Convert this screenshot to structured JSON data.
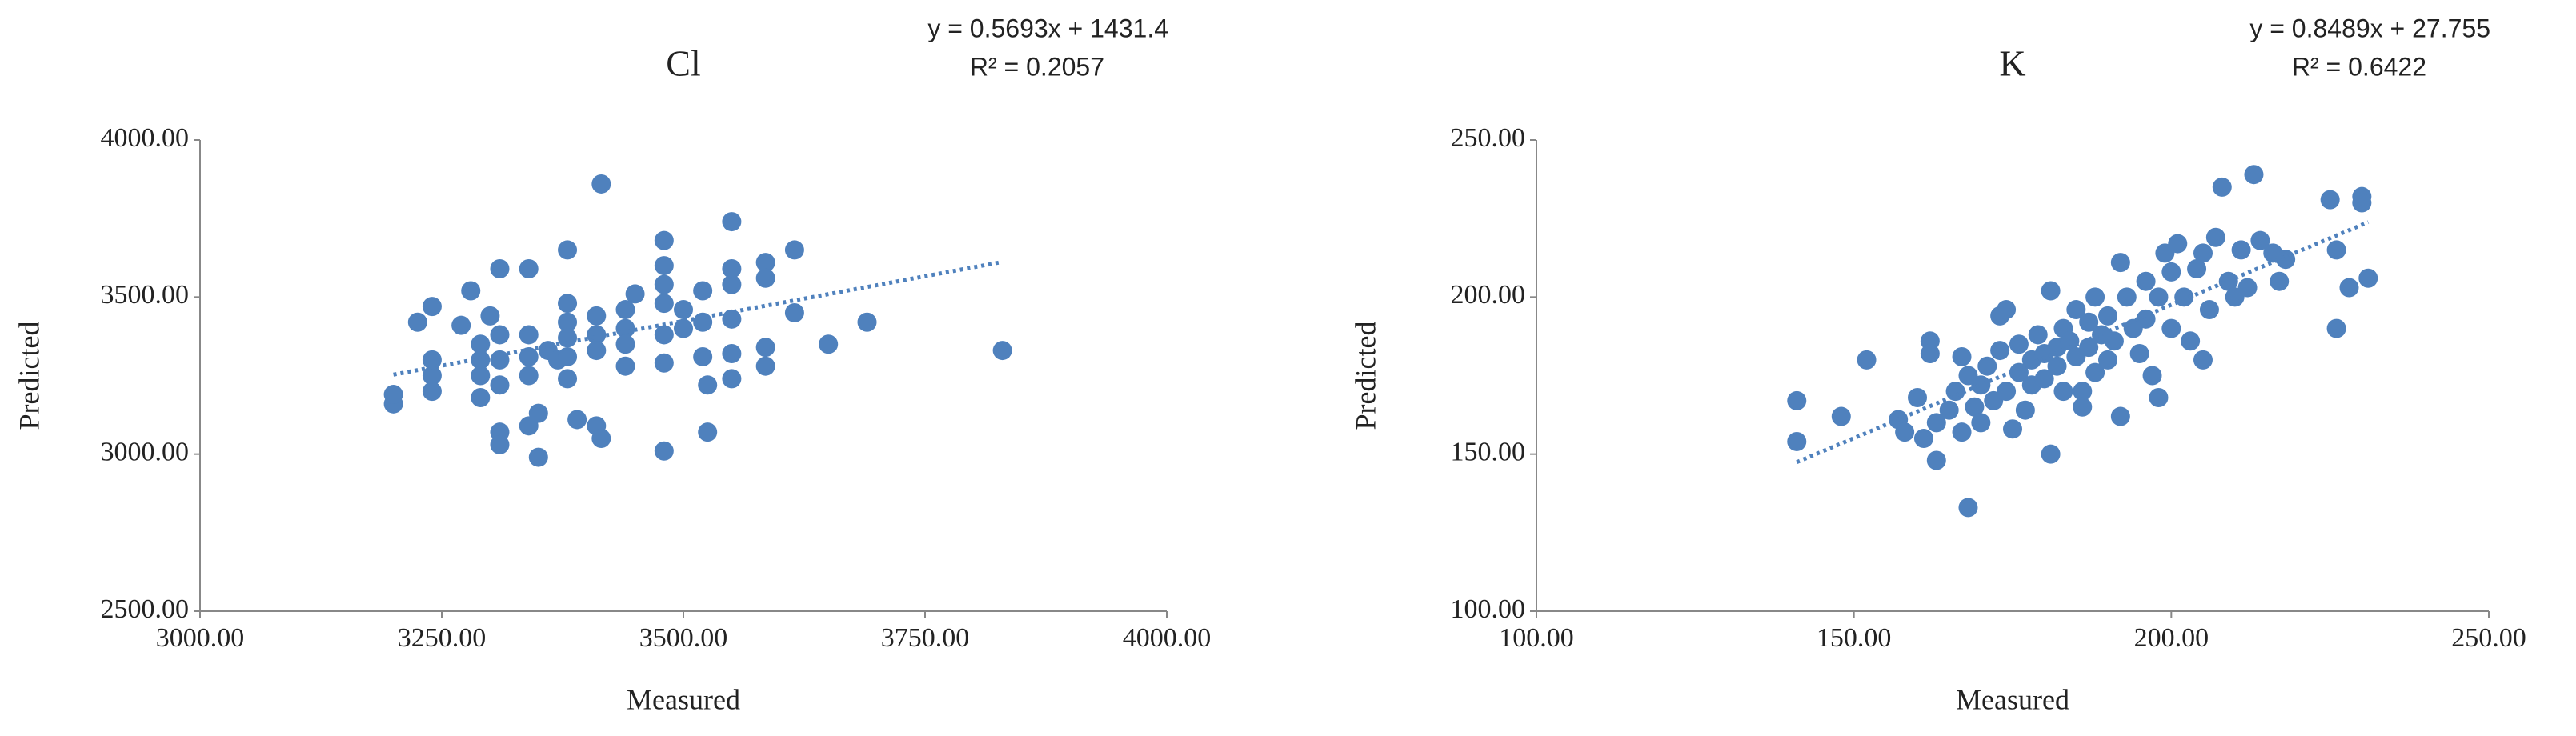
{
  "chart_data": [
    {
      "type": "scatter",
      "title": "Cl",
      "annotations": [
        "y = 0.5693x + 1431.4",
        "R² = 0.2057"
      ],
      "xlabel": "Measured",
      "ylabel": "Predicted",
      "color": "#4f81bd",
      "trendline": {
        "slope": 0.5693,
        "intercept": 1431.4
      },
      "xlim": [
        3000,
        4000
      ],
      "ylim": [
        2500,
        4000
      ],
      "xticks": [
        {
          "value": 3000,
          "label": "3000.00"
        },
        {
          "value": 3250,
          "label": "3250.00"
        },
        {
          "value": 3500,
          "label": "3500.00"
        },
        {
          "value": 3750,
          "label": "3750.00"
        },
        {
          "value": 4000,
          "label": "4000.00"
        }
      ],
      "yticks": [
        {
          "value": 2500,
          "label": "2500.00"
        },
        {
          "value": 3000,
          "label": "3000.00"
        },
        {
          "value": 3500,
          "label": "3500.00"
        },
        {
          "value": 4000,
          "label": "4000.00"
        }
      ],
      "x": [
        3200,
        3200,
        3225,
        3240,
        3240,
        3240,
        3240,
        3270,
        3280,
        3290,
        3290,
        3290,
        3290,
        3300,
        3310,
        3310,
        3310,
        3310,
        3310,
        3310,
        3340,
        3340,
        3340,
        3340,
        3340,
        3350,
        3350,
        3360,
        3370,
        3380,
        3380,
        3380,
        3380,
        3380,
        3380,
        3390,
        3410,
        3410,
        3410,
        3410,
        3415,
        3415,
        3440,
        3440,
        3440,
        3440,
        3450,
        3480,
        3480,
        3480,
        3480,
        3480,
        3480,
        3480,
        3500,
        3500,
        3520,
        3520,
        3520,
        3525,
        3525,
        3550,
        3550,
        3550,
        3550,
        3550,
        3550,
        3585,
        3585,
        3585,
        3585,
        3615,
        3615,
        3650,
        3690,
        3830
      ],
      "values": [
        3160,
        3190,
        3420,
        3470,
        3300,
        3250,
        3200,
        3410,
        3520,
        3300,
        3250,
        3180,
        3350,
        3440,
        3590,
        3380,
        3300,
        3220,
        3070,
        3030,
        3590,
        3380,
        3310,
        3250,
        3090,
        2990,
        3130,
        3330,
        3300,
        3650,
        3480,
        3420,
        3370,
        3310,
        3240,
        3110,
        3440,
        3380,
        3330,
        3090,
        3050,
        3860,
        3460,
        3400,
        3350,
        3280,
        3510,
        3680,
        3600,
        3540,
        3480,
        3380,
        3290,
        3010,
        3460,
        3400,
        3520,
        3420,
        3310,
        3220,
        3070,
        3740,
        3590,
        3540,
        3430,
        3320,
        3240,
        3610,
        3560,
        3340,
        3280,
        3650,
        3450,
        3350,
        3420,
        3330
      ]
    },
    {
      "type": "scatter",
      "title": "K",
      "annotations": [
        "y = 0.8489x + 27.755",
        "R² = 0.6422"
      ],
      "xlabel": "Measured",
      "ylabel": "Predicted",
      "color": "#4f81bd",
      "trendline": {
        "slope": 0.8489,
        "intercept": 27.755
      },
      "xlim": [
        100,
        250
      ],
      "ylim": [
        100,
        250
      ],
      "xticks": [
        {
          "value": 100,
          "label": "100.00"
        },
        {
          "value": 150,
          "label": "150.00"
        },
        {
          "value": 200,
          "label": "200.00"
        },
        {
          "value": 250,
          "label": "250.00"
        }
      ],
      "yticks": [
        {
          "value": 100,
          "label": "100.00"
        },
        {
          "value": 150,
          "label": "150.00"
        },
        {
          "value": 200,
          "label": "200.00"
        },
        {
          "value": 250,
          "label": "250.00"
        }
      ],
      "x": [
        141,
        141,
        148,
        152,
        157,
        158,
        160,
        161,
        162,
        162,
        163,
        163,
        165,
        166,
        167,
        167,
        168,
        168,
        169,
        170,
        170,
        171,
        172,
        173,
        173,
        174,
        174,
        175,
        176,
        176,
        177,
        178,
        178,
        179,
        180,
        180,
        181,
        181,
        182,
        182,
        183,
        183,
        184,
        185,
        185,
        186,
        186,
        187,
        187,
        188,
        188,
        189,
        190,
        190,
        191,
        192,
        192,
        193,
        194,
        195,
        196,
        196,
        197,
        198,
        198,
        199,
        200,
        200,
        201,
        202,
        203,
        204,
        205,
        205,
        206,
        207,
        208,
        209,
        210,
        211,
        212,
        213,
        214,
        216,
        217,
        218,
        225,
        226,
        226,
        228,
        230,
        230,
        231
      ],
      "values": [
        167,
        154,
        162,
        180,
        161,
        157,
        168,
        155,
        186,
        182,
        148,
        160,
        164,
        170,
        181,
        157,
        133,
        175,
        165,
        160,
        172,
        178,
        167,
        194,
        183,
        196,
        170,
        158,
        176,
        185,
        164,
        180,
        172,
        188,
        174,
        182,
        202,
        150,
        184,
        178,
        190,
        170,
        186,
        196,
        181,
        170,
        165,
        192,
        184,
        200,
        176,
        188,
        180,
        194,
        186,
        162,
        211,
        200,
        190,
        182,
        205,
        193,
        175,
        168,
        200,
        214,
        190,
        208,
        217,
        200,
        186,
        209,
        214,
        180,
        196,
        219,
        235,
        205,
        200,
        215,
        203,
        239,
        218,
        214,
        205,
        212,
        231,
        190,
        215,
        203,
        232,
        230,
        206
      ]
    }
  ]
}
